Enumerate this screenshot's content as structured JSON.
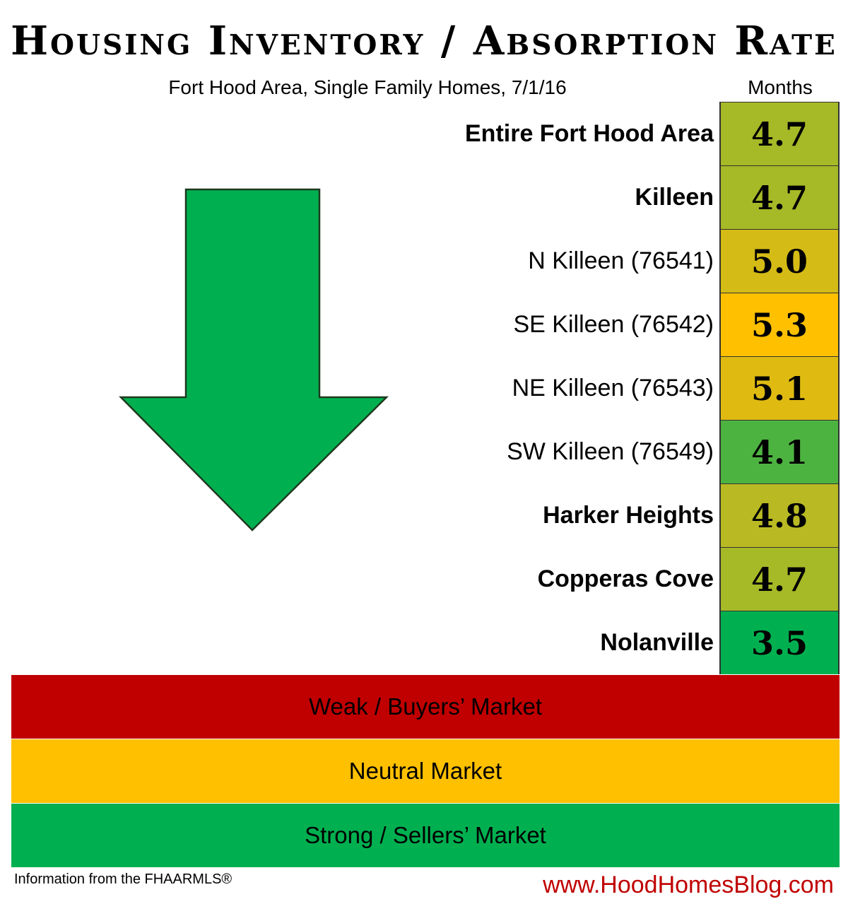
{
  "title": "Housing Inventory / Absorption Rate",
  "subtitle": "Fort Hood Area, Single Family Homes, 7/1/16",
  "footer": {
    "source": "Information from the FHAARMLS®",
    "website": "www.HoodHomesBlog.com"
  },
  "colors": {
    "weak": "#c00000",
    "neutral": "#ffc000",
    "strong": "#00b050",
    "arrow": "#00b050"
  },
  "chart_data": {
    "type": "table",
    "title": "Housing Inventory / Absorption Rate",
    "subtitle": "Fort Hood Area, Single Family Homes, 7/1/16",
    "value_header": "Months",
    "trend": "down",
    "rows": [
      {
        "label": "Entire Fort Hood Area",
        "value": "4.7",
        "bold": true,
        "color": "#a6b927"
      },
      {
        "label": "Killeen",
        "value": "4.7",
        "bold": true,
        "color": "#a6b927"
      },
      {
        "label": "N Killeen (76541)",
        "value": "5.0",
        "bold": false,
        "color": "#d4bb15"
      },
      {
        "label": "SE Killeen (76542)",
        "value": "5.3",
        "bold": false,
        "color": "#ffc000"
      },
      {
        "label": "NE Killeen (76543)",
        "value": "5.1",
        "bold": false,
        "color": "#dfbb12"
      },
      {
        "label": "SW Killeen (76549)",
        "value": "4.1",
        "bold": false,
        "color": "#4db340"
      },
      {
        "label": "Harker Heights",
        "value": "4.8",
        "bold": true,
        "color": "#b9ba23"
      },
      {
        "label": "Copperas Cove",
        "value": "4.7",
        "bold": true,
        "color": "#a6b927"
      },
      {
        "label": "Nolanville",
        "value": "3.5",
        "bold": true,
        "color": "#00b050"
      }
    ],
    "legend": [
      {
        "label": "Weak / Buyers’ Market",
        "color": "#c00000"
      },
      {
        "label": "Neutral Market",
        "color": "#ffc000"
      },
      {
        "label": "Strong / Sellers’ Market",
        "color": "#00b050"
      }
    ]
  }
}
